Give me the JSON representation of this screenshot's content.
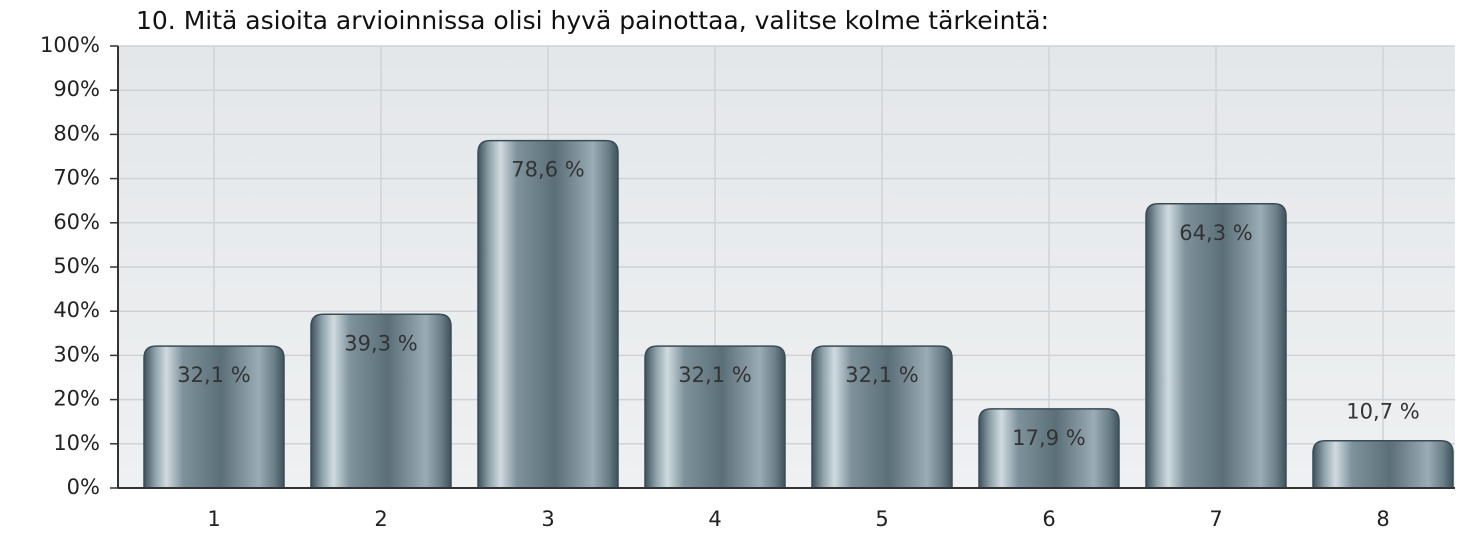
{
  "chart_data": {
    "type": "bar",
    "title": "10. Mitä asioita arvioinnissa olisi hyvä painottaa, valitse kolme tärkeintä:",
    "categories": [
      "1",
      "2",
      "3",
      "4",
      "5",
      "6",
      "7",
      "8"
    ],
    "values": [
      32.1,
      39.3,
      78.6,
      32.1,
      32.1,
      17.9,
      64.3,
      10.7
    ],
    "value_labels": [
      "32,1 %",
      "39,3 %",
      "78,6 %",
      "32,1 %",
      "32,1 %",
      "17,9 %",
      "64,3 %",
      "10,7 %"
    ],
    "color": "#6f8490",
    "ylim": [
      0,
      100
    ],
    "yticks": [
      {
        "value": 0,
        "label": "0%"
      },
      {
        "value": 10,
        "label": "10%"
      },
      {
        "value": 20,
        "label": "20%"
      },
      {
        "value": 30,
        "label": "30%"
      },
      {
        "value": 40,
        "label": "40%"
      },
      {
        "value": 50,
        "label": "50%"
      },
      {
        "value": 60,
        "label": "60%"
      },
      {
        "value": 70,
        "label": "70%"
      },
      {
        "value": 80,
        "label": "80%"
      },
      {
        "value": 90,
        "label": "90%"
      },
      {
        "value": 100,
        "label": "100%"
      }
    ],
    "grid": true
  }
}
